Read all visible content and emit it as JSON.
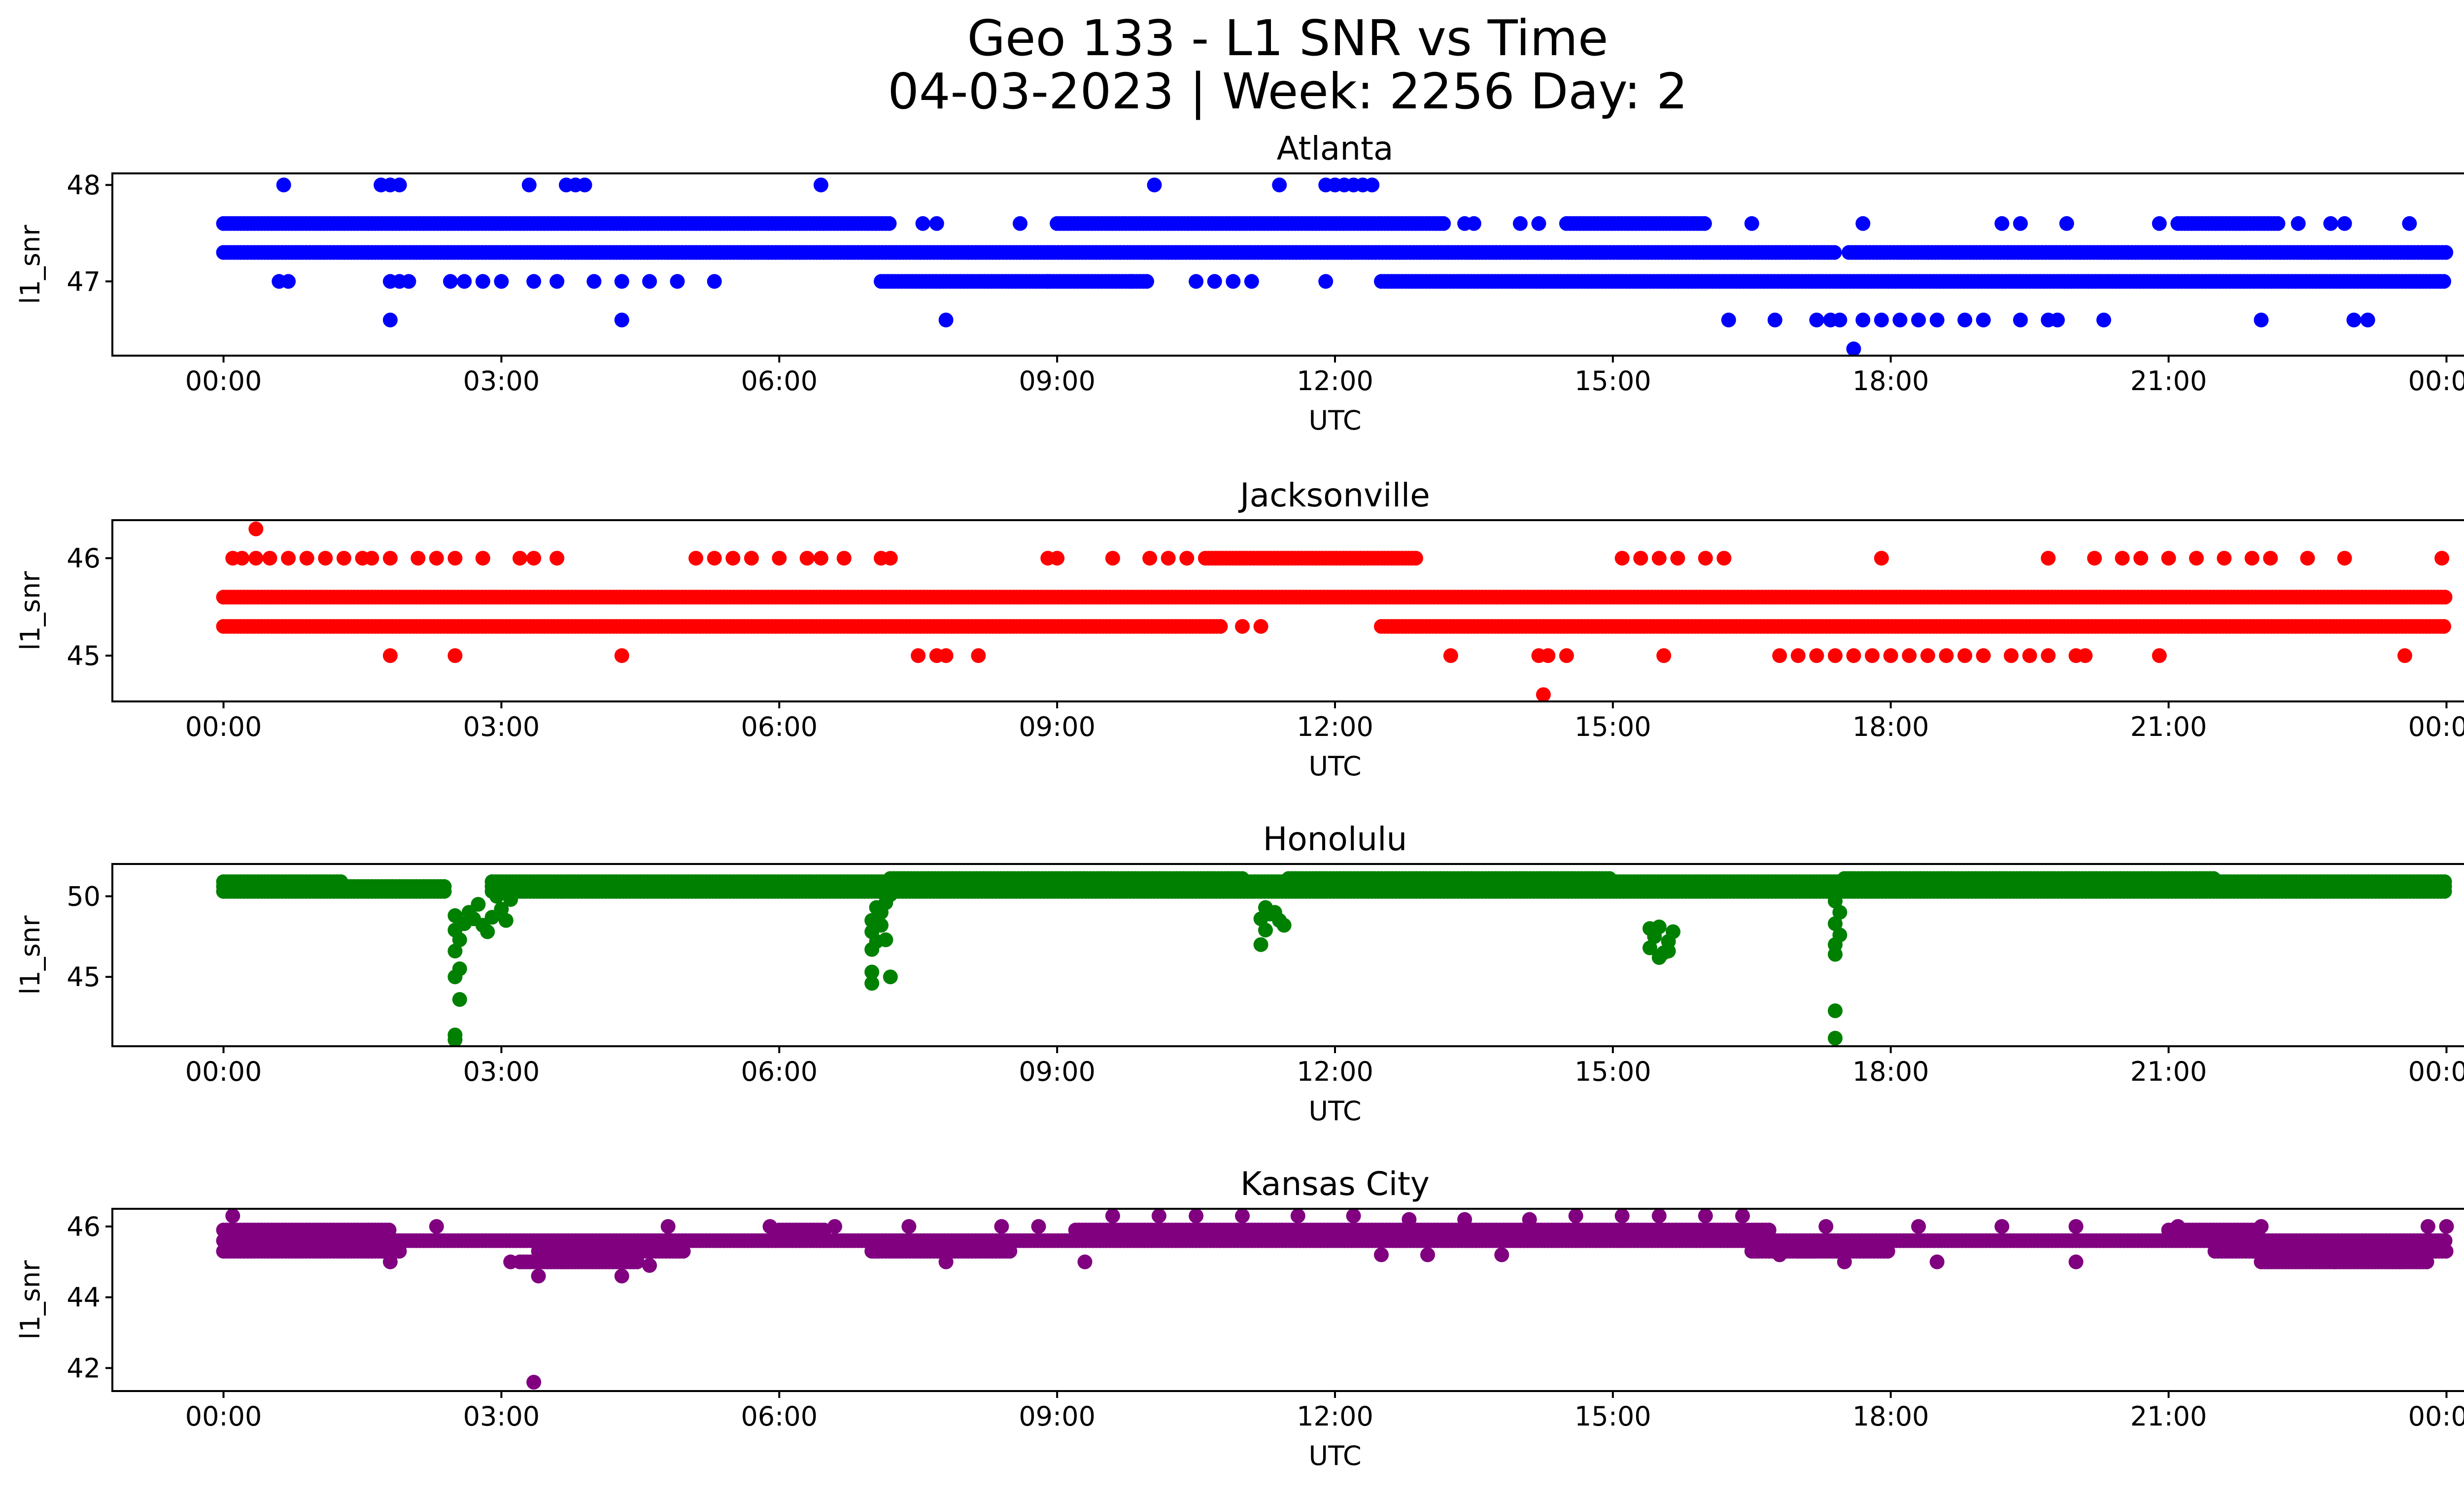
{
  "figure": {
    "title_line1": "Geo 133 - L1 SNR vs Time",
    "title_line2": "04-03-2023 | Week: 2256 Day: 2"
  },
  "chart_data": [
    {
      "type": "scatter",
      "title": "Atlanta",
      "color": "#0000ff",
      "xlabel": "UTC",
      "ylabel": "l1_snr",
      "xticks": [
        "00:00",
        "03:00",
        "06:00",
        "09:00",
        "12:00",
        "15:00",
        "18:00",
        "21:00",
        "00:00"
      ],
      "xlim_hours": [
        -1.2,
        25.2
      ],
      "yticks": [
        47,
        48
      ],
      "ylim": [
        46.23,
        48.12
      ],
      "bands": [
        {
          "y": 47.3,
          "segments": [
            [
              0,
              17.4
            ],
            [
              17.55,
              24
            ]
          ]
        },
        {
          "y": 47.6,
          "segments": [
            [
              0,
              7.2
            ],
            [
              9.0,
              13.2
            ],
            [
              14.5,
              16.0
            ],
            [
              21.1,
              22.2
            ]
          ]
        },
        {
          "y": 47.0,
          "segments": [
            [
              7.1,
              10.0
            ],
            [
              12.5,
              24
            ]
          ]
        }
      ],
      "points": [
        [
          0.65,
          48
        ],
        [
          1.7,
          48
        ],
        [
          1.8,
          48
        ],
        [
          1.9,
          48
        ],
        [
          3.3,
          48
        ],
        [
          3.7,
          48
        ],
        [
          3.8,
          48
        ],
        [
          3.9,
          48
        ],
        [
          6.45,
          48
        ],
        [
          10.05,
          48
        ],
        [
          11.4,
          48
        ],
        [
          11.9,
          48
        ],
        [
          12.0,
          48
        ],
        [
          12.1,
          48
        ],
        [
          12.2,
          48
        ],
        [
          12.3,
          48
        ],
        [
          12.4,
          48
        ],
        [
          7.55,
          47.6
        ],
        [
          7.7,
          47.6
        ],
        [
          8.6,
          47.6
        ],
        [
          13.4,
          47.6
        ],
        [
          13.5,
          47.6
        ],
        [
          14.0,
          47.6
        ],
        [
          14.2,
          47.6
        ],
        [
          16.5,
          47.6
        ],
        [
          17.7,
          47.6
        ],
        [
          19.2,
          47.6
        ],
        [
          19.4,
          47.6
        ],
        [
          19.9,
          47.6
        ],
        [
          20.9,
          47.6
        ],
        [
          22.4,
          47.6
        ],
        [
          22.75,
          47.6
        ],
        [
          22.9,
          47.6
        ],
        [
          23.6,
          47.6
        ],
        [
          0.6,
          47
        ],
        [
          0.7,
          47
        ],
        [
          1.8,
          47
        ],
        [
          1.9,
          47
        ],
        [
          2.0,
          47
        ],
        [
          2.45,
          47
        ],
        [
          2.6,
          47
        ],
        [
          2.8,
          47
        ],
        [
          3.0,
          47
        ],
        [
          3.35,
          47
        ],
        [
          3.6,
          47
        ],
        [
          4.0,
          47
        ],
        [
          4.3,
          47
        ],
        [
          4.6,
          47
        ],
        [
          4.9,
          47
        ],
        [
          5.3,
          47
        ],
        [
          8.9,
          47
        ],
        [
          9.8,
          47
        ],
        [
          10.5,
          47
        ],
        [
          10.7,
          47
        ],
        [
          10.9,
          47
        ],
        [
          11.1,
          47
        ],
        [
          11.9,
          47
        ],
        [
          1.8,
          46.6
        ],
        [
          4.3,
          46.6
        ],
        [
          7.8,
          46.6
        ],
        [
          16.25,
          46.6
        ],
        [
          16.75,
          46.6
        ],
        [
          17.2,
          46.6
        ],
        [
          17.35,
          46.6
        ],
        [
          17.45,
          46.6
        ],
        [
          17.7,
          46.6
        ],
        [
          17.9,
          46.6
        ],
        [
          18.1,
          46.6
        ],
        [
          18.3,
          46.6
        ],
        [
          18.5,
          46.6
        ],
        [
          18.8,
          46.6
        ],
        [
          19.0,
          46.6
        ],
        [
          19.4,
          46.6
        ],
        [
          19.8,
          46.6
        ],
        [
          19.7,
          46.6
        ],
        [
          20.3,
          46.6
        ],
        [
          22.0,
          46.6
        ],
        [
          23.0,
          46.6
        ],
        [
          23.15,
          46.6
        ],
        [
          17.6,
          46.3
        ]
      ]
    },
    {
      "type": "scatter",
      "title": "Jacksonville",
      "color": "#ff0000",
      "xlabel": "UTC",
      "ylabel": "l1_snr",
      "xticks": [
        "00:00",
        "03:00",
        "06:00",
        "09:00",
        "12:00",
        "15:00",
        "18:00",
        "21:00",
        "00:00"
      ],
      "xlim_hours": [
        -1.2,
        25.2
      ],
      "yticks": [
        45,
        46
      ],
      "ylim": [
        44.53,
        46.39
      ],
      "bands": [
        {
          "y": 45.6,
          "segments": [
            [
              0,
              24
            ]
          ]
        },
        {
          "y": 45.3,
          "segments": [
            [
              0,
              10.8
            ],
            [
              12.5,
              24
            ]
          ]
        },
        {
          "y": 46.0,
          "segments": [
            [
              10.6,
              12.9
            ]
          ]
        }
      ],
      "points": [
        [
          0.35,
          46.3
        ],
        [
          0.1,
          46
        ],
        [
          0.2,
          46
        ],
        [
          0.35,
          46
        ],
        [
          0.5,
          46
        ],
        [
          0.7,
          46
        ],
        [
          0.9,
          46
        ],
        [
          1.1,
          46
        ],
        [
          1.3,
          46
        ],
        [
          1.5,
          46
        ],
        [
          1.6,
          46
        ],
        [
          1.8,
          46
        ],
        [
          2.1,
          46
        ],
        [
          2.3,
          46
        ],
        [
          2.5,
          46
        ],
        [
          2.8,
          46
        ],
        [
          3.2,
          46
        ],
        [
          3.35,
          46
        ],
        [
          3.6,
          46
        ],
        [
          5.1,
          46
        ],
        [
          5.3,
          46
        ],
        [
          5.5,
          46
        ],
        [
          5.7,
          46
        ],
        [
          6.0,
          46
        ],
        [
          6.3,
          46
        ],
        [
          6.45,
          46
        ],
        [
          6.7,
          46
        ],
        [
          7.1,
          46
        ],
        [
          7.2,
          46
        ],
        [
          8.9,
          46
        ],
        [
          9.0,
          46
        ],
        [
          9.6,
          46
        ],
        [
          10.0,
          46
        ],
        [
          10.2,
          46
        ],
        [
          10.4,
          46
        ],
        [
          15.1,
          46
        ],
        [
          15.3,
          46
        ],
        [
          15.5,
          46
        ],
        [
          15.7,
          46
        ],
        [
          16.0,
          46
        ],
        [
          16.2,
          46
        ],
        [
          17.9,
          46
        ],
        [
          19.7,
          46
        ],
        [
          20.2,
          46
        ],
        [
          20.5,
          46
        ],
        [
          20.7,
          46
        ],
        [
          21.0,
          46
        ],
        [
          21.3,
          46
        ],
        [
          21.6,
          46
        ],
        [
          21.9,
          46
        ],
        [
          22.1,
          46
        ],
        [
          22.5,
          46
        ],
        [
          22.9,
          46
        ],
        [
          23.95,
          46
        ],
        [
          11.0,
          45.3
        ],
        [
          11.2,
          45.3
        ],
        [
          1.8,
          45
        ],
        [
          2.5,
          45
        ],
        [
          4.3,
          45
        ],
        [
          7.5,
          45
        ],
        [
          7.7,
          45
        ],
        [
          7.8,
          45
        ],
        [
          8.15,
          45
        ],
        [
          13.25,
          45
        ],
        [
          14.2,
          45
        ],
        [
          14.3,
          45
        ],
        [
          14.5,
          45
        ],
        [
          15.55,
          45
        ],
        [
          16.8,
          45
        ],
        [
          17.0,
          45
        ],
        [
          17.2,
          45
        ],
        [
          17.4,
          45
        ],
        [
          17.6,
          45
        ],
        [
          17.8,
          45
        ],
        [
          18.0,
          45
        ],
        [
          18.2,
          45
        ],
        [
          18.4,
          45
        ],
        [
          18.6,
          45
        ],
        [
          18.8,
          45
        ],
        [
          19.0,
          45
        ],
        [
          19.3,
          45
        ],
        [
          19.5,
          45
        ],
        [
          19.7,
          45
        ],
        [
          20.0,
          45
        ],
        [
          20.1,
          45
        ],
        [
          20.9,
          45
        ],
        [
          23.55,
          45
        ],
        [
          14.25,
          44.6
        ]
      ]
    },
    {
      "type": "scatter",
      "title": "Honolulu",
      "color": "#008000",
      "xlabel": "UTC",
      "ylabel": "l1_snr",
      "xticks": [
        "00:00",
        "03:00",
        "06:00",
        "09:00",
        "12:00",
        "15:00",
        "18:00",
        "21:00",
        "00:00"
      ],
      "xlim_hours": [
        -1.2,
        25.2
      ],
      "yticks": [
        45,
        50
      ],
      "ylim": [
        40.7,
        52.0
      ],
      "bands": [
        {
          "y": 50.3,
          "segments": [
            [
              0,
              2.4
            ]
          ]
        },
        {
          "y": 50.6,
          "segments": [
            [
              0,
              2.4
            ],
            [
              2.9,
              24
            ]
          ]
        },
        {
          "y": 50.9,
          "segments": [
            [
              0,
              1.3
            ],
            [
              2.9,
              24
            ]
          ]
        },
        {
          "y": 50.3,
          "segments": [
            [
              2.9,
              24
            ]
          ]
        },
        {
          "y": 51.1,
          "segments": [
            [
              7.2,
              11.0
            ],
            [
              11.5,
              15.0
            ],
            [
              17.5,
              21.5
            ]
          ]
        }
      ],
      "points": [
        [
          2.5,
          41.1
        ],
        [
          2.5,
          41.4
        ],
        [
          2.55,
          43.6
        ],
        [
          2.5,
          45.0
        ],
        [
          2.55,
          45.5
        ],
        [
          2.5,
          46.6
        ],
        [
          2.55,
          47.3
        ],
        [
          2.5,
          47.9
        ],
        [
          2.6,
          48.3
        ],
        [
          2.5,
          48.8
        ],
        [
          2.65,
          49.0
        ],
        [
          2.7,
          48.6
        ],
        [
          2.8,
          48.2
        ],
        [
          2.85,
          47.8
        ],
        [
          2.9,
          48.7
        ],
        [
          3.0,
          49.2
        ],
        [
          3.05,
          48.5
        ],
        [
          3.1,
          49.8
        ],
        [
          2.75,
          49.5
        ],
        [
          2.95,
          50.0
        ],
        [
          7.0,
          44.6
        ],
        [
          7.0,
          45.3
        ],
        [
          7.0,
          46.7
        ],
        [
          7.05,
          47.2
        ],
        [
          7.0,
          47.8
        ],
        [
          7.1,
          48.2
        ],
        [
          7.0,
          48.5
        ],
        [
          7.1,
          49.0
        ],
        [
          7.15,
          47.3
        ],
        [
          7.2,
          45.0
        ],
        [
          7.15,
          49.6
        ],
        [
          7.2,
          50.1
        ],
        [
          7.05,
          49.3
        ],
        [
          11.2,
          47.0
        ],
        [
          11.25,
          47.9
        ],
        [
          11.2,
          48.6
        ],
        [
          11.3,
          48.9
        ],
        [
          11.25,
          49.3
        ],
        [
          11.4,
          48.5
        ],
        [
          11.45,
          48.2
        ],
        [
          11.35,
          49.0
        ],
        [
          15.4,
          46.8
        ],
        [
          15.45,
          47.5
        ],
        [
          15.5,
          48.1
        ],
        [
          15.55,
          46.5
        ],
        [
          15.6,
          47.2
        ],
        [
          15.4,
          48.0
        ],
        [
          15.5,
          46.2
        ],
        [
          15.6,
          46.6
        ],
        [
          15.65,
          47.8
        ],
        [
          17.4,
          41.2
        ],
        [
          17.4,
          42.9
        ],
        [
          17.4,
          46.4
        ],
        [
          17.4,
          47.0
        ],
        [
          17.45,
          47.6
        ],
        [
          17.4,
          48.3
        ],
        [
          17.45,
          49.0
        ],
        [
          17.4,
          49.7
        ],
        [
          17.4,
          50.2
        ]
      ]
    },
    {
      "type": "scatter",
      "title": "Kansas City",
      "color": "#800080",
      "xlabel": "UTC",
      "ylabel": "l1_snr",
      "xticks": [
        "00:00",
        "03:00",
        "06:00",
        "09:00",
        "12:00",
        "15:00",
        "18:00",
        "21:00",
        "00:00"
      ],
      "xlim_hours": [
        -1.2,
        25.2
      ],
      "yticks": [
        42,
        44,
        46
      ],
      "ylim": [
        41.35,
        46.5
      ],
      "bands": [
        {
          "y": 45.3,
          "segments": [
            [
              0,
              1.9
            ],
            [
              3.4,
              5.0
            ],
            [
              16.5,
              17.2
            ],
            [
              21.5,
              24
            ]
          ]
        },
        {
          "y": 45.6,
          "segments": [
            [
              0,
              24
            ]
          ]
        },
        {
          "y": 45.9,
          "segments": [
            [
              0,
              1.8
            ],
            [
              6.0,
              6.5
            ],
            [
              9.2,
              16.7
            ],
            [
              21.0,
              22.0
            ]
          ]
        },
        {
          "y": 45.3,
          "segments": [
            [
              7.0,
              8.5
            ],
            [
              17.0,
              18.0
            ]
          ]
        },
        {
          "y": 45.0,
          "segments": [
            [
              3.2,
              4.5
            ],
            [
              22.0,
              23.8
            ]
          ]
        }
      ],
      "points": [
        [
          0.1,
          46.3
        ],
        [
          2.3,
          46
        ],
        [
          4.8,
          46
        ],
        [
          5.9,
          46
        ],
        [
          6.6,
          46
        ],
        [
          7.4,
          46
        ],
        [
          8.4,
          46
        ],
        [
          8.8,
          46
        ],
        [
          9.6,
          46.3
        ],
        [
          10.1,
          46.3
        ],
        [
          10.5,
          46.3
        ],
        [
          11.0,
          46.3
        ],
        [
          11.6,
          46.3
        ],
        [
          12.2,
          46.3
        ],
        [
          12.8,
          46.2
        ],
        [
          13.4,
          46.2
        ],
        [
          14.1,
          46.2
        ],
        [
          14.6,
          46.3
        ],
        [
          15.1,
          46.3
        ],
        [
          15.5,
          46.3
        ],
        [
          16.0,
          46.3
        ],
        [
          16.4,
          46.3
        ],
        [
          17.3,
          46
        ],
        [
          18.3,
          46
        ],
        [
          19.2,
          46
        ],
        [
          20.0,
          46
        ],
        [
          21.1,
          46
        ],
        [
          22.0,
          46
        ],
        [
          23.8,
          46
        ],
        [
          24.0,
          46
        ],
        [
          1.8,
          45.0
        ],
        [
          3.1,
          45.0
        ],
        [
          3.4,
          44.6
        ],
        [
          3.5,
          45.0
        ],
        [
          4.3,
          44.6
        ],
        [
          4.6,
          44.9
        ],
        [
          7.8,
          45.0
        ],
        [
          9.3,
          45.0
        ],
        [
          12.5,
          45.2
        ],
        [
          13.0,
          45.2
        ],
        [
          13.8,
          45.2
        ],
        [
          16.8,
          45.2
        ],
        [
          17.5,
          45.0
        ],
        [
          18.5,
          45.0
        ],
        [
          20.0,
          45.0
        ],
        [
          22.8,
          45.0
        ],
        [
          23.5,
          45.0
        ],
        [
          3.35,
          41.6
        ]
      ]
    }
  ]
}
